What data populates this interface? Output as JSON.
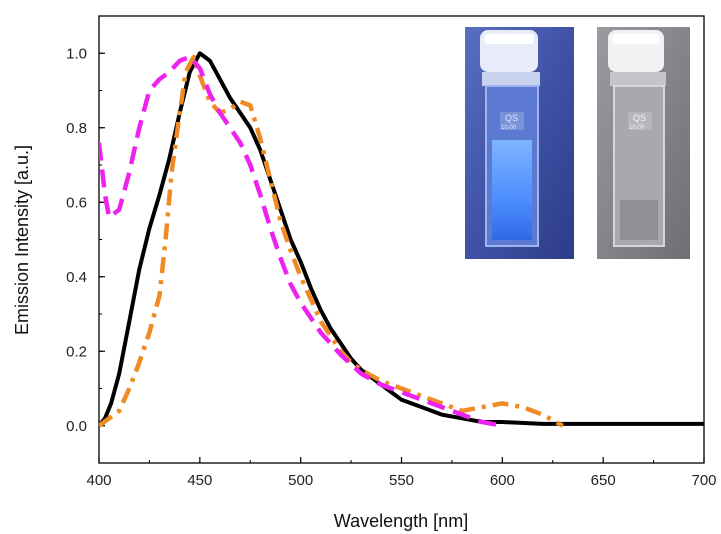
{
  "chart_data": {
    "type": "line",
    "title": "",
    "xlabel": "Wavelength [nm]",
    "ylabel": "Emission Intensity [a.u.]",
    "xlim": [
      400,
      700
    ],
    "ylim": [
      -0.1,
      1.1
    ],
    "x_ticks": [
      400,
      450,
      500,
      550,
      600,
      650,
      700
    ],
    "y_ticks": [
      "0.0",
      "0.2",
      "0.4",
      "0.6",
      "0.8",
      "1.0"
    ],
    "grid": false,
    "legend": "none",
    "series": [
      {
        "color": "#000000",
        "style": "solid",
        "points": [
          [
            400,
            0.0
          ],
          [
            403,
            0.02
          ],
          [
            406,
            0.06
          ],
          [
            410,
            0.14
          ],
          [
            415,
            0.28
          ],
          [
            420,
            0.42
          ],
          [
            425,
            0.53
          ],
          [
            430,
            0.62
          ],
          [
            435,
            0.72
          ],
          [
            440,
            0.84
          ],
          [
            445,
            0.95
          ],
          [
            450,
            1.0
          ],
          [
            455,
            0.98
          ],
          [
            460,
            0.93
          ],
          [
            465,
            0.88
          ],
          [
            470,
            0.84
          ],
          [
            475,
            0.8
          ],
          [
            480,
            0.74
          ],
          [
            485,
            0.66
          ],
          [
            490,
            0.58
          ],
          [
            495,
            0.5
          ],
          [
            500,
            0.44
          ],
          [
            505,
            0.37
          ],
          [
            510,
            0.31
          ],
          [
            515,
            0.26
          ],
          [
            520,
            0.22
          ],
          [
            525,
            0.18
          ],
          [
            530,
            0.15
          ],
          [
            535,
            0.13
          ],
          [
            540,
            0.11
          ],
          [
            545,
            0.09
          ],
          [
            550,
            0.07
          ],
          [
            560,
            0.05
          ],
          [
            570,
            0.03
          ],
          [
            580,
            0.02
          ],
          [
            590,
            0.01
          ],
          [
            600,
            0.01
          ],
          [
            620,
            0.005
          ],
          [
            640,
            0.005
          ],
          [
            660,
            0.005
          ],
          [
            680,
            0.005
          ],
          [
            700,
            0.005
          ]
        ]
      },
      {
        "color": "#ee22ee",
        "style": "dashed",
        "points": [
          [
            400,
            0.76
          ],
          [
            403,
            0.62
          ],
          [
            405,
            0.56
          ],
          [
            410,
            0.58
          ],
          [
            415,
            0.68
          ],
          [
            420,
            0.8
          ],
          [
            425,
            0.9
          ],
          [
            430,
            0.93
          ],
          [
            435,
            0.95
          ],
          [
            440,
            0.98
          ],
          [
            445,
            0.99
          ],
          [
            450,
            0.96
          ],
          [
            455,
            0.89
          ],
          [
            460,
            0.84
          ],
          [
            465,
            0.8
          ],
          [
            470,
            0.76
          ],
          [
            475,
            0.7
          ],
          [
            480,
            0.62
          ],
          [
            485,
            0.53
          ],
          [
            490,
            0.45
          ],
          [
            495,
            0.38
          ],
          [
            500,
            0.33
          ],
          [
            510,
            0.25
          ],
          [
            520,
            0.19
          ],
          [
            530,
            0.14
          ],
          [
            540,
            0.11
          ],
          [
            550,
            0.09
          ],
          [
            560,
            0.07
          ],
          [
            570,
            0.05
          ],
          [
            580,
            0.03
          ],
          [
            590,
            0.01
          ],
          [
            600,
            0.0
          ]
        ]
      },
      {
        "color": "#f08a24",
        "style": "dashdot",
        "points": [
          [
            400,
            0.0
          ],
          [
            405,
            0.02
          ],
          [
            410,
            0.04
          ],
          [
            415,
            0.1
          ],
          [
            420,
            0.17
          ],
          [
            425,
            0.25
          ],
          [
            430,
            0.35
          ],
          [
            433,
            0.5
          ],
          [
            436,
            0.68
          ],
          [
            440,
            0.84
          ],
          [
            443,
            0.95
          ],
          [
            447,
            0.99
          ],
          [
            450,
            0.94
          ],
          [
            455,
            0.87
          ],
          [
            460,
            0.84
          ],
          [
            465,
            0.85
          ],
          [
            470,
            0.87
          ],
          [
            475,
            0.86
          ],
          [
            480,
            0.77
          ],
          [
            485,
            0.66
          ],
          [
            490,
            0.55
          ],
          [
            495,
            0.47
          ],
          [
            500,
            0.4
          ],
          [
            505,
            0.34
          ],
          [
            510,
            0.28
          ],
          [
            515,
            0.24
          ],
          [
            520,
            0.2
          ],
          [
            525,
            0.17
          ],
          [
            530,
            0.15
          ],
          [
            540,
            0.12
          ],
          [
            550,
            0.1
          ],
          [
            560,
            0.08
          ],
          [
            570,
            0.06
          ],
          [
            580,
            0.04
          ],
          [
            590,
            0.05
          ],
          [
            600,
            0.06
          ],
          [
            610,
            0.05
          ],
          [
            620,
            0.03
          ],
          [
            630,
            0.0
          ]
        ]
      }
    ]
  },
  "inset_photos": [
    {
      "cuvette_label_top": "QS",
      "cuvette_label_bottom": "10.00",
      "glow": "blue"
    },
    {
      "cuvette_label_top": "QS",
      "cuvette_label_bottom": "10.00",
      "glow": "none"
    }
  ]
}
